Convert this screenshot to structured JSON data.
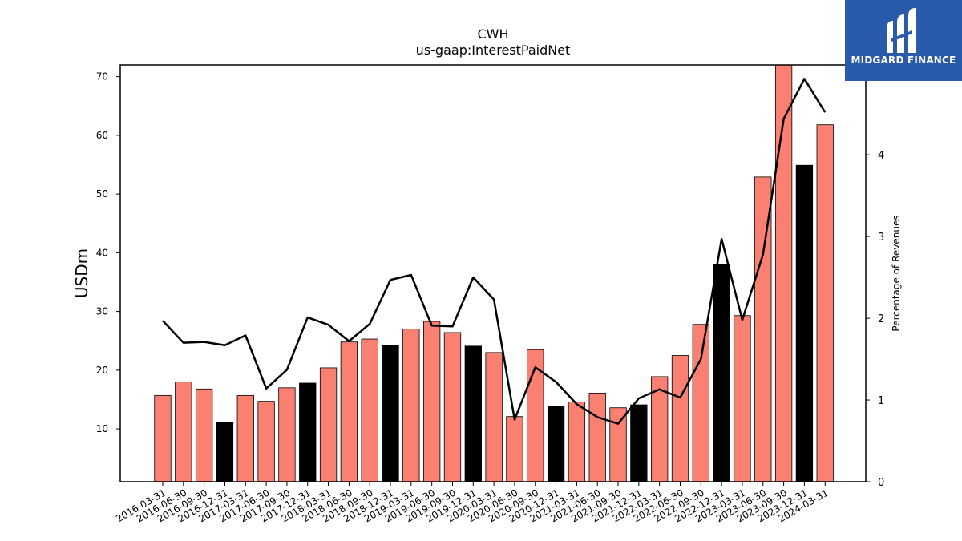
{
  "chart_data": {
    "type": "bar",
    "title": "CWH",
    "subtitle": "us-gaap:InterestPaidNet",
    "ylabel": "USDm",
    "y2label": "Percentage of Revenues",
    "ylim": [
      1,
      72
    ],
    "y2lim": [
      0,
      5.1
    ],
    "yticks": [
      10,
      20,
      30,
      40,
      50,
      60,
      70
    ],
    "y2ticks": [
      0,
      1,
      2,
      3,
      4,
      5
    ],
    "categories": [
      "2016-03-31",
      "2016-06-30",
      "2016-09-30",
      "2016-12-31",
      "2017-03-31",
      "2017-06-30",
      "2017-09-30",
      "2017-12-31",
      "2018-03-31",
      "2018-06-30",
      "2018-09-30",
      "2018-12-31",
      "2019-03-31",
      "2019-06-30",
      "2019-09-30",
      "2019-12-31",
      "2020-03-31",
      "2020-06-30",
      "2020-09-30",
      "2020-12-31",
      "2021-03-31",
      "2021-06-30",
      "2021-09-30",
      "2021-12-31",
      "2022-03-31",
      "2022-06-30",
      "2022-09-30",
      "2022-12-31",
      "2023-03-31",
      "2023-06-30",
      "2023-09-30",
      "2023-12-31",
      "2024-03-31"
    ],
    "series": [
      {
        "type": "bar",
        "values": [
          15.7,
          18.0,
          16.8,
          11.1,
          15.7,
          14.7,
          17.0,
          17.8,
          20.4,
          24.8,
          25.3,
          24.2,
          27.0,
          28.3,
          26.4,
          24.1,
          23.0,
          12.1,
          23.5,
          13.8,
          14.6,
          16.1,
          13.6,
          14.1,
          18.9,
          22.5,
          27.8,
          38.0,
          29.3,
          52.9,
          72.0,
          54.9,
          61.8
        ]
      },
      {
        "type": "line",
        "axis": "right",
        "values": [
          1.97,
          1.7,
          1.71,
          1.67,
          1.79,
          1.14,
          1.37,
          2.01,
          1.92,
          1.72,
          1.93,
          2.47,
          2.53,
          1.91,
          1.9,
          2.5,
          2.23,
          0.76,
          1.4,
          1.22,
          0.95,
          0.79,
          0.71,
          1.02,
          1.13,
          1.03,
          1.5,
          2.97,
          1.98,
          2.78,
          4.44,
          4.93,
          4.52
        ]
      }
    ],
    "bar_colors": {
      "default": "#fa8072",
      "year_end": "#000000",
      "edge": "#000000"
    },
    "line_color": "#000000",
    "grid": false
  },
  "logo": {
    "text": "MIDGARD FINANCE",
    "background": "#2a5bab"
  }
}
